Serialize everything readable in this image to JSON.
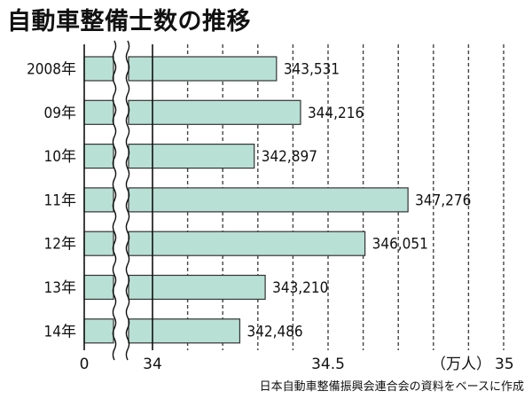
{
  "title": "自動車整備士数の推移",
  "source": "日本自動車整備振興会連合会の資料をベースに作成",
  "colors": {
    "bar_fill": "#b8e0d4",
    "bar_stroke": "#333333",
    "grid": "#444444",
    "background": "#ffffff"
  },
  "chart_data": {
    "type": "bar",
    "orientation": "horizontal",
    "categories": [
      "2008年",
      "09年",
      "10年",
      "11年",
      "12年",
      "13年",
      "14年"
    ],
    "values": [
      343531,
      344216,
      342897,
      347276,
      346051,
      343210,
      342486
    ],
    "value_labels": [
      "343,531",
      "344,216",
      "342,897",
      "347,276",
      "346,051",
      "343,210",
      "342,486"
    ],
    "axis": {
      "break": true,
      "start": 0,
      "break_resume": 340000,
      "max": 350000,
      "ticks": [
        {
          "value": 0,
          "label": "0"
        },
        {
          "value": 340000,
          "label": "34"
        },
        {
          "value": 345000,
          "label": "34.5"
        },
        {
          "value": 350000,
          "label": "35"
        }
      ],
      "unit_label": "（万人）",
      "gridline_step": 1000
    },
    "grid": true
  }
}
